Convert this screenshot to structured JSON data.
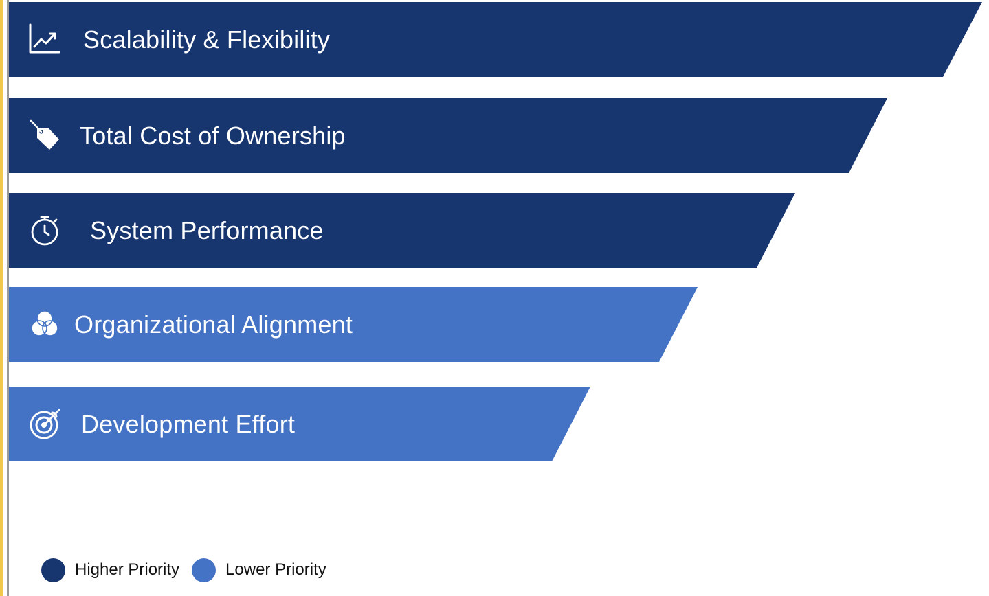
{
  "colors": {
    "higher": "#17356f",
    "lower": "#4472c4",
    "accent_rule": "#f2c84b"
  },
  "items": [
    {
      "label": "Scalability & Flexibility",
      "icon": "line-chart-icon",
      "priority": "higher"
    },
    {
      "label": "Total Cost of Ownership",
      "icon": "price-tag-icon",
      "priority": "higher"
    },
    {
      "label": "System Performance",
      "icon": "stopwatch-icon",
      "priority": "higher"
    },
    {
      "label": "Organizational Alignment",
      "icon": "venn-circles-icon",
      "priority": "lower"
    },
    {
      "label": "Development Effort",
      "icon": "target-icon",
      "priority": "lower"
    }
  ],
  "legend": {
    "higher": "Higher Priority",
    "lower": "Lower Priority"
  }
}
